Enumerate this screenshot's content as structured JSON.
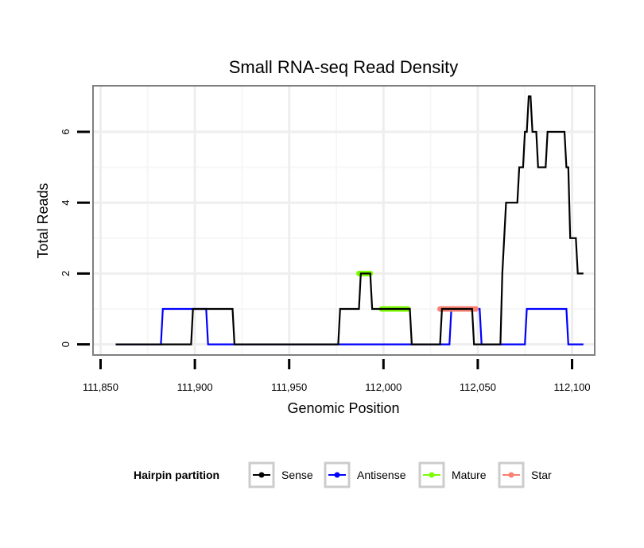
{
  "chart_data": {
    "type": "line",
    "title": "Small RNA-seq Read Density",
    "xlabel": "Genomic Position",
    "ylabel": "Total Reads",
    "xlim": [
      111846,
      112112
    ],
    "ylim": [
      -0.3,
      7.3
    ],
    "x_ticks": [
      111850,
      111900,
      111950,
      112000,
      112050,
      112100
    ],
    "x_tick_labels": [
      "111,850",
      "111,900",
      "111,950",
      "112,000",
      "112,050",
      "112,100"
    ],
    "y_ticks": [
      0,
      2,
      4,
      6
    ],
    "y_tick_labels": [
      "0",
      "2",
      "4",
      "6"
    ],
    "grid": true,
    "legend": {
      "title": "Hairpin partition",
      "position": "bottom",
      "entries": [
        {
          "label": "Sense",
          "color": "#000000"
        },
        {
          "label": "Antisense",
          "color": "#0000ff"
        },
        {
          "label": "Mature",
          "color": "#7cfc00"
        },
        {
          "label": "Star",
          "color": "#fa8072"
        }
      ]
    },
    "series": [
      {
        "name": "Sense",
        "color": "#000000",
        "x": [
          111858,
          111898,
          111899,
          111920,
          111921,
          111976,
          111977,
          111987,
          111988,
          111993,
          111994,
          112014,
          112015,
          112030,
          112031,
          112047,
          112048,
          112062,
          112063,
          112065,
          112066,
          112071,
          112072,
          112074,
          112075,
          112076,
          112077,
          112078,
          112079,
          112081,
          112082,
          112083,
          112084,
          112086,
          112087,
          112088,
          112089,
          112096,
          112097,
          112098,
          112099,
          112102,
          112103,
          112106
        ],
        "values": [
          0,
          0,
          1,
          1,
          0,
          0,
          1,
          1,
          2,
          2,
          1,
          1,
          0,
          0,
          1,
          1,
          0,
          0,
          2,
          4,
          4,
          4,
          5,
          5,
          6,
          6,
          7,
          7,
          6,
          6,
          5,
          5,
          5,
          5,
          6,
          6,
          6,
          6,
          5,
          5,
          3,
          3,
          2,
          2
        ]
      },
      {
        "name": "Antisense",
        "color": "#0000ff",
        "x": [
          111858,
          111882,
          111883,
          111906,
          111907,
          112035,
          112036,
          112051,
          112052,
          112075,
          112076,
          112097,
          112098,
          112106
        ],
        "values": [
          0,
          0,
          1,
          1,
          0,
          0,
          1,
          1,
          0,
          0,
          1,
          1,
          0,
          0
        ]
      },
      {
        "name": "Mature",
        "color": "#7cfc00",
        "segments": [
          {
            "x": [
              111987,
              111993
            ],
            "y": 2
          },
          {
            "x": [
              111999,
              112013
            ],
            "y": 1
          }
        ]
      },
      {
        "name": "Star",
        "color": "#fa8072",
        "segments": [
          {
            "x": [
              112030,
              112049
            ],
            "y": 1
          }
        ]
      }
    ]
  }
}
